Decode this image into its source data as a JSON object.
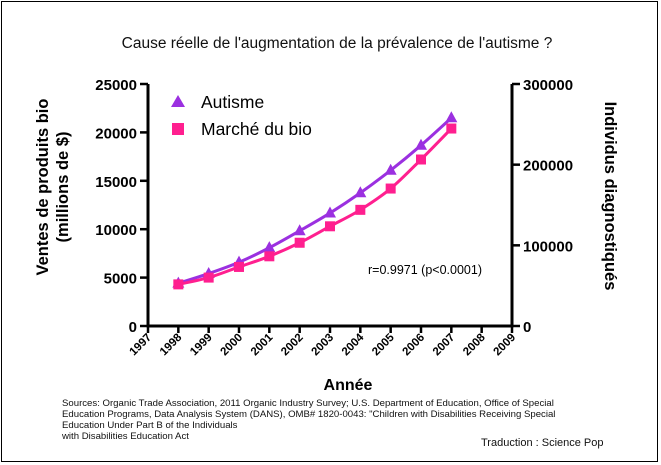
{
  "chart_data": {
    "type": "line",
    "title": "Cause réelle de l'augmentation de la prévalence de l'autisme ?",
    "xlabel": "Année",
    "ylabel_left": [
      "Ventes de produits bio",
      "(millions de $)"
    ],
    "ylabel_right": "Individus diagnostiqués",
    "x_ticks": [
      "1997",
      "1998",
      "1999",
      "2000",
      "2001",
      "2002",
      "2003",
      "2004",
      "2005",
      "2006",
      "2007",
      "2008",
      "2009"
    ],
    "xlim": [
      1997,
      2009
    ],
    "y_left_ticks": [
      "0",
      "5000",
      "10000",
      "15000",
      "20000",
      "25000"
    ],
    "ylim_left": [
      0,
      25000
    ],
    "y_right_ticks": [
      "0",
      "100000",
      "200000",
      "300000"
    ],
    "ylim_right": [
      0,
      300000
    ],
    "legend_position": "top-left",
    "series": [
      {
        "name": "Autisme",
        "axis": "right",
        "color": "#9b30e0",
        "marker": "triangle",
        "x": [
          1998,
          1999,
          2000,
          2001,
          2002,
          2003,
          2004,
          2005,
          2006,
          2007
        ],
        "values": [
          53000,
          65000,
          79000,
          97000,
          118000,
          140000,
          165000,
          193000,
          224000,
          258000
        ]
      },
      {
        "name": "Marché du bio",
        "axis": "left",
        "color": "#ff1f8f",
        "marker": "square",
        "x": [
          1998,
          1999,
          2000,
          2001,
          2002,
          2003,
          2004,
          2005,
          2006,
          2007
        ],
        "values": [
          4300,
          5000,
          6100,
          7200,
          8600,
          10300,
          12000,
          14200,
          17200,
          20400
        ]
      }
    ],
    "annotation": "r=0.9971 (p<0.0001)"
  },
  "sources": [
    "Sources: Organic Trade Association,  2011 Organic Industry Survey; U.S. Department of Education, Office of Special",
    "Education Programs, Data Analysis System (DANS), OMB# 1820-0043: \"Children with Disabilities Receiving Special",
    "Education Under Part B of the Individuals",
    "with Disabilities Education Act"
  ],
  "credit": "Traduction : Science Pop"
}
